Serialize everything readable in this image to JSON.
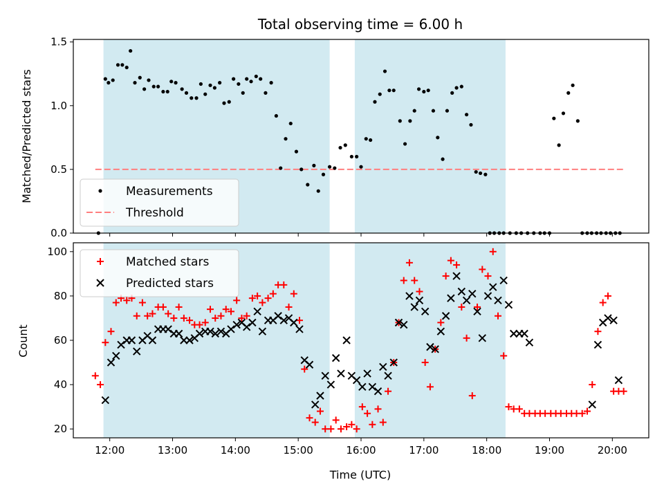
{
  "chart_data": [
    {
      "type": "scatter",
      "title": "Total observing time = 6.00 h",
      "xlabel": "",
      "ylabel": "Matched/Predicted stars",
      "xlim": [
        11.42,
        20.58
      ],
      "ylim": [
        0,
        1.52
      ],
      "yticks": [
        0.0,
        0.5,
        1.0,
        1.5
      ],
      "ytick_labels": [
        "0.0",
        "0.5",
        "1.0",
        "1.5"
      ],
      "xticks": [
        12,
        13,
        14,
        15,
        16,
        17,
        18,
        19,
        20
      ],
      "shaded_intervals": [
        [
          11.9,
          15.5
        ],
        [
          15.9,
          18.3
        ]
      ],
      "shade_color": "#add8e6",
      "legend": {
        "placement": "lower-left",
        "entries": [
          "Measurements",
          "Threshold"
        ]
      },
      "threshold": {
        "name": "Threshold",
        "value": 0.5,
        "x_range": [
          11.77,
          20.17
        ],
        "color": "#ff7f7f",
        "style": "dashed"
      },
      "series": [
        {
          "name": "Measurements",
          "marker": "dot",
          "color": "#000000",
          "x": [
            11.82,
            11.93,
            11.98,
            12.05,
            12.13,
            12.2,
            12.27,
            12.33,
            12.4,
            12.48,
            12.55,
            12.62,
            12.7,
            12.77,
            12.85,
            12.92,
            12.98,
            13.05,
            13.15,
            13.22,
            13.3,
            13.38,
            13.45,
            13.52,
            13.6,
            13.67,
            13.75,
            13.82,
            13.9,
            13.97,
            14.05,
            14.12,
            14.18,
            14.25,
            14.33,
            14.4,
            14.48,
            14.57,
            14.65,
            14.72,
            14.8,
            14.88,
            14.97,
            15.05,
            15.15,
            15.25,
            15.32,
            15.4,
            15.5,
            15.58,
            15.67,
            15.75,
            15.85,
            15.93,
            16.0,
            16.08,
            16.15,
            16.22,
            16.3,
            16.38,
            16.45,
            16.52,
            16.62,
            16.7,
            16.78,
            16.85,
            16.92,
            17.0,
            17.07,
            17.15,
            17.22,
            17.3,
            17.37,
            17.45,
            17.52,
            17.6,
            17.68,
            17.75,
            17.83,
            17.9,
            17.98,
            18.05,
            18.12,
            18.2,
            18.27,
            18.37,
            18.47,
            18.55,
            18.65,
            18.75,
            18.85,
            18.92,
            19.0,
            19.07,
            19.15,
            19.22,
            19.3,
            19.37,
            19.45,
            19.52,
            19.6,
            19.67,
            19.75,
            19.82,
            19.9,
            19.97,
            20.05,
            20.12
          ],
          "y": [
            0.0,
            1.21,
            1.18,
            1.2,
            1.32,
            1.32,
            1.3,
            1.43,
            1.18,
            1.22,
            1.13,
            1.2,
            1.15,
            1.15,
            1.11,
            1.11,
            1.19,
            1.18,
            1.13,
            1.1,
            1.06,
            1.06,
            1.17,
            1.09,
            1.16,
            1.14,
            1.18,
            1.02,
            1.03,
            1.21,
            1.17,
            1.1,
            1.21,
            1.19,
            1.23,
            1.21,
            1.1,
            1.18,
            0.92,
            0.51,
            0.74,
            0.86,
            0.64,
            0.5,
            0.38,
            0.53,
            0.33,
            0.46,
            0.52,
            0.51,
            0.67,
            0.69,
            0.6,
            0.6,
            0.52,
            0.74,
            0.73,
            1.03,
            1.09,
            1.27,
            1.12,
            1.12,
            0.88,
            0.7,
            0.88,
            0.96,
            1.13,
            1.11,
            1.12,
            0.96,
            0.75,
            0.58,
            0.96,
            1.1,
            1.14,
            1.15,
            0.93,
            0.85,
            0.48,
            0.47,
            0.46,
            0.0,
            0.0,
            0.0,
            0.0,
            0.0,
            0.0,
            0.0,
            0.0,
            0.0,
            0.0,
            0.0,
            0.0,
            0.9,
            0.69,
            0.94,
            1.1,
            1.16,
            0.88,
            0.0,
            0.0,
            0.0,
            0.0,
            0.0,
            0.0,
            0.0,
            0.0,
            0.0
          ]
        }
      ]
    },
    {
      "type": "scatter",
      "title": "",
      "xlabel": "Time (UTC)",
      "ylabel": "Count",
      "xlim": [
        11.42,
        20.58
      ],
      "ylim": [
        16,
        104
      ],
      "yticks": [
        20,
        40,
        60,
        80,
        100
      ],
      "ytick_labels": [
        "20",
        "40",
        "60",
        "80",
        "100"
      ],
      "xticks": [
        12,
        13,
        14,
        15,
        16,
        17,
        18,
        19,
        20
      ],
      "xtick_labels": [
        "12:00",
        "13:00",
        "14:00",
        "15:00",
        "16:00",
        "17:00",
        "18:00",
        "19:00",
        "20:00"
      ],
      "shaded_intervals": [
        [
          11.9,
          15.5
        ],
        [
          15.9,
          18.3
        ]
      ],
      "shade_color": "#add8e6",
      "legend": {
        "placement": "upper-left",
        "entries": [
          "Matched stars",
          "Predicted stars"
        ]
      },
      "series": [
        {
          "name": "Matched stars",
          "marker": "plus",
          "color": "#ff0000",
          "x": [
            11.77,
            11.85,
            11.93,
            12.02,
            12.1,
            12.18,
            12.27,
            12.35,
            12.43,
            12.52,
            12.6,
            12.68,
            12.77,
            12.85,
            12.93,
            13.02,
            13.1,
            13.18,
            13.27,
            13.35,
            13.43,
            13.52,
            13.6,
            13.68,
            13.77,
            13.85,
            13.93,
            14.02,
            14.1,
            14.18,
            14.27,
            14.35,
            14.43,
            14.52,
            14.6,
            14.68,
            14.77,
            14.85,
            14.93,
            15.02,
            15.1,
            15.18,
            15.27,
            15.35,
            15.43,
            15.52,
            15.6,
            15.68,
            15.77,
            15.85,
            15.93,
            16.02,
            16.1,
            16.18,
            16.27,
            16.35,
            16.43,
            16.52,
            16.6,
            16.68,
            16.77,
            16.85,
            16.93,
            17.02,
            17.1,
            17.18,
            17.27,
            17.35,
            17.43,
            17.52,
            17.6,
            17.68,
            17.77,
            17.85,
            17.93,
            18.02,
            18.1,
            18.18,
            18.27,
            18.35,
            18.43,
            18.52,
            18.6,
            18.68,
            18.77,
            18.85,
            18.93,
            19.02,
            19.1,
            19.18,
            19.27,
            19.35,
            19.43,
            19.52,
            19.6,
            19.68,
            19.77,
            19.85,
            19.93,
            20.02,
            20.1,
            20.18
          ],
          "y": [
            44,
            40,
            59,
            64,
            77,
            79,
            78,
            79,
            71,
            77,
            71,
            72,
            75,
            75,
            72,
            70,
            75,
            70,
            69,
            67,
            67,
            68,
            74,
            70,
            71,
            74,
            73,
            78,
            70,
            71,
            79,
            80,
            77,
            79,
            81,
            85,
            85,
            75,
            81,
            69,
            47,
            25,
            23,
            28,
            20,
            20,
            24,
            20,
            21,
            22,
            20,
            30,
            27,
            22,
            29,
            23,
            37,
            50,
            68,
            87,
            95,
            87,
            82,
            50,
            39,
            56,
            68,
            89,
            96,
            94,
            75,
            61,
            35,
            75,
            92,
            89,
            100,
            71,
            53,
            30,
            29,
            29,
            27,
            27,
            27,
            27,
            27,
            27,
            27,
            27,
            27,
            27,
            27,
            27,
            28,
            40,
            64,
            77,
            80,
            37,
            37,
            37
          ]
        },
        {
          "name": "Predicted stars",
          "marker": "x",
          "color": "#000000",
          "x": [
            11.93,
            12.02,
            12.1,
            12.18,
            12.27,
            12.35,
            12.43,
            12.52,
            12.6,
            12.68,
            12.77,
            12.85,
            12.93,
            13.02,
            13.1,
            13.18,
            13.27,
            13.35,
            13.43,
            13.52,
            13.6,
            13.68,
            13.77,
            13.85,
            13.93,
            14.02,
            14.1,
            14.18,
            14.27,
            14.35,
            14.43,
            14.52,
            14.6,
            14.68,
            14.77,
            14.85,
            14.93,
            15.02,
            15.1,
            15.18,
            15.27,
            15.35,
            15.43,
            15.52,
            15.6,
            15.68,
            15.77,
            15.85,
            15.93,
            16.02,
            16.1,
            16.18,
            16.27,
            16.35,
            16.43,
            16.52,
            16.6,
            16.68,
            16.77,
            16.85,
            16.93,
            17.02,
            17.1,
            17.18,
            17.27,
            17.35,
            17.43,
            17.52,
            17.6,
            17.68,
            17.77,
            17.85,
            17.93,
            18.02,
            18.1,
            18.18,
            18.27,
            18.35,
            18.43,
            18.52,
            18.6,
            18.68,
            19.68,
            19.77,
            19.85,
            19.93,
            20.02,
            20.1
          ],
          "y": [
            33,
            50,
            53,
            58,
            60,
            60,
            55,
            60,
            62,
            60,
            65,
            65,
            65,
            63,
            63,
            60,
            60,
            61,
            63,
            64,
            64,
            63,
            64,
            63,
            65,
            67,
            68,
            66,
            68,
            73,
            64,
            69,
            69,
            71,
            69,
            70,
            68,
            65,
            51,
            49,
            31,
            35,
            44,
            40,
            52,
            45,
            60,
            44,
            42,
            39,
            45,
            39,
            37,
            48,
            44,
            50,
            68,
            67,
            80,
            75,
            78,
            73,
            57,
            56,
            64,
            71,
            79,
            89,
            82,
            78,
            81,
            73,
            61,
            80,
            84,
            78,
            87,
            76,
            63,
            63,
            63,
            59,
            31,
            58,
            68,
            70,
            69,
            42
          ]
        }
      ]
    }
  ]
}
